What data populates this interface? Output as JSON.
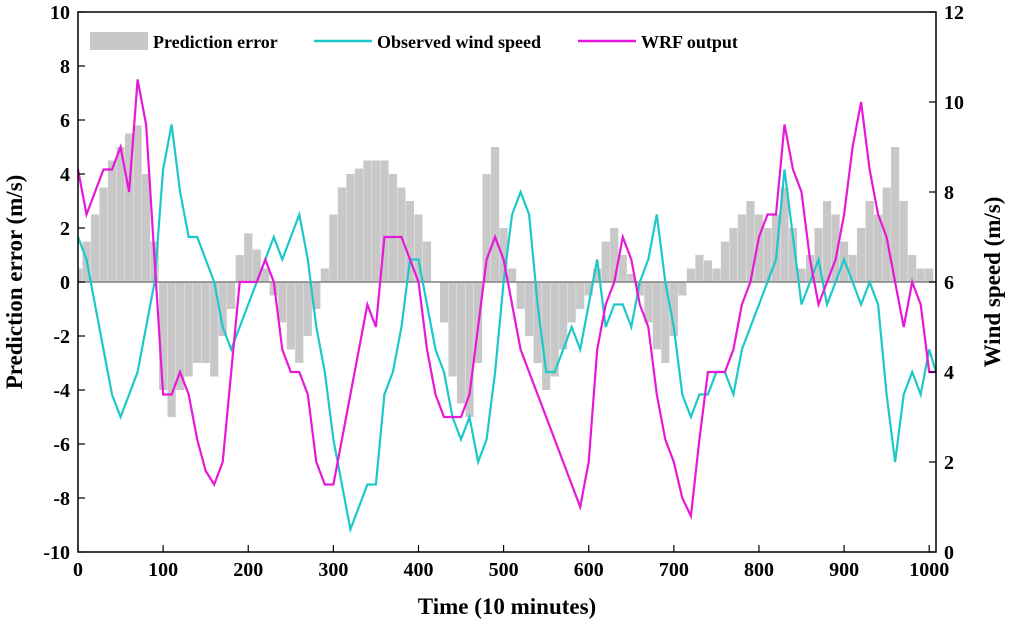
{
  "chart_data": {
    "type": "line",
    "xlabel": "Time (10 minutes)",
    "ylabel_left": "Prediction error (m/s)",
    "ylabel_right": "Wind speed (m/s)",
    "xlim": [
      0,
      1008
    ],
    "ylim_left": [
      -10,
      10
    ],
    "ylim_right": [
      0,
      12
    ],
    "x_ticks": [
      0,
      100,
      200,
      300,
      400,
      500,
      600,
      700,
      800,
      900,
      1000
    ],
    "y_ticks_left": [
      -10,
      -8,
      -6,
      -4,
      -2,
      0,
      2,
      4,
      6,
      8,
      10
    ],
    "y_ticks_right": [
      0,
      2,
      4,
      6,
      8,
      10,
      12
    ],
    "grid": false,
    "legend_position": "top",
    "legend": [
      "Prediction error",
      "Observed wind speed",
      "WRF output"
    ],
    "colors": {
      "prediction_error": "#c8c8c8",
      "observed": "#1ec8c8",
      "wrf": "#e619d8",
      "zero_line": "#808080"
    },
    "series": [
      {
        "name": "Prediction error",
        "axis": "left",
        "render": "bar",
        "x": [
          0,
          10,
          20,
          30,
          40,
          50,
          60,
          70,
          80,
          90,
          100,
          110,
          120,
          130,
          140,
          150,
          160,
          170,
          180,
          190,
          200,
          210,
          220,
          230,
          240,
          250,
          260,
          270,
          280,
          290,
          300,
          310,
          320,
          330,
          340,
          350,
          360,
          370,
          380,
          390,
          400,
          410,
          420,
          430,
          440,
          450,
          460,
          470,
          480,
          490,
          500,
          510,
          520,
          530,
          540,
          550,
          560,
          570,
          580,
          590,
          600,
          610,
          620,
          630,
          640,
          650,
          660,
          670,
          680,
          690,
          700,
          710,
          720,
          730,
          740,
          750,
          760,
          770,
          780,
          790,
          800,
          810,
          820,
          830,
          840,
          850,
          860,
          870,
          880,
          890,
          900,
          910,
          920,
          930,
          940,
          950,
          960,
          970,
          980,
          990,
          1000
        ],
        "values": [
          0.5,
          1.5,
          2.5,
          3.5,
          4.5,
          5.0,
          5.5,
          5.8,
          4.0,
          1.5,
          -4.0,
          -5.0,
          -4.0,
          -3.5,
          -3.0,
          -3.0,
          -3.5,
          -2.0,
          -1.0,
          1.0,
          1.8,
          1.2,
          0.5,
          -0.5,
          -1.5,
          -2.5,
          -3.0,
          -2.0,
          -1.0,
          0.5,
          2.5,
          3.5,
          4.0,
          4.2,
          4.5,
          4.5,
          4.5,
          4.0,
          3.5,
          3.0,
          2.5,
          1.5,
          0.0,
          -1.5,
          -3.5,
          -4.5,
          -5.0,
          -3.0,
          4.0,
          5.0,
          2.0,
          0.5,
          -1.0,
          -2.0,
          -3.0,
          -4.0,
          -3.5,
          -2.5,
          -1.5,
          -1.0,
          -0.5,
          0.5,
          1.5,
          2.0,
          1.0,
          0.3,
          -0.5,
          -1.5,
          -2.5,
          -3.0,
          -2.0,
          -0.5,
          0.5,
          1.0,
          0.8,
          0.5,
          1.5,
          2.0,
          2.5,
          3.0,
          2.5,
          2.0,
          2.5,
          3.5,
          2.0,
          0.5,
          1.0,
          2.0,
          3.0,
          2.5,
          1.5,
          1.0,
          2.0,
          3.0,
          2.5,
          3.5,
          5.0,
          3.0,
          1.0,
          0.5,
          0.5
        ]
      },
      {
        "name": "Observed wind speed",
        "axis": "right",
        "render": "line",
        "x": [
          0,
          10,
          20,
          30,
          40,
          50,
          60,
          70,
          80,
          90,
          100,
          110,
          120,
          130,
          140,
          150,
          160,
          170,
          180,
          190,
          200,
          210,
          220,
          230,
          240,
          250,
          260,
          270,
          280,
          290,
          300,
          310,
          320,
          330,
          340,
          350,
          360,
          370,
          380,
          390,
          400,
          410,
          420,
          430,
          440,
          450,
          460,
          470,
          480,
          490,
          500,
          510,
          520,
          530,
          540,
          550,
          560,
          570,
          580,
          590,
          600,
          610,
          620,
          630,
          640,
          650,
          660,
          670,
          680,
          690,
          700,
          710,
          720,
          730,
          740,
          750,
          760,
          770,
          780,
          790,
          800,
          810,
          820,
          830,
          840,
          850,
          860,
          870,
          880,
          890,
          900,
          910,
          920,
          930,
          940,
          950,
          960,
          970,
          980,
          990,
          1000,
          1008
        ],
        "values": [
          7.0,
          6.5,
          5.5,
          4.5,
          3.5,
          3.0,
          3.5,
          4.0,
          5.0,
          6.0,
          8.5,
          9.5,
          8.0,
          7.0,
          7.0,
          6.5,
          6.0,
          5.0,
          4.5,
          5.0,
          5.5,
          6.0,
          6.5,
          7.0,
          6.5,
          7.0,
          7.5,
          6.5,
          5.0,
          4.0,
          2.5,
          1.5,
          0.5,
          1.0,
          1.5,
          1.5,
          3.5,
          4.0,
          5.0,
          6.5,
          6.5,
          5.5,
          4.5,
          4.0,
          3.0,
          2.5,
          3.0,
          2.0,
          2.5,
          4.0,
          6.0,
          7.5,
          8.0,
          7.5,
          5.5,
          4.0,
          4.0,
          4.5,
          5.0,
          4.5,
          5.5,
          6.5,
          5.0,
          5.5,
          5.5,
          5.0,
          6.0,
          6.5,
          7.5,
          6.0,
          5.0,
          3.5,
          3.0,
          3.5,
          3.5,
          4.0,
          4.0,
          3.5,
          4.5,
          5.0,
          5.5,
          6.0,
          6.5,
          8.5,
          7.0,
          5.5,
          6.0,
          6.5,
          5.5,
          6.0,
          6.5,
          6.0,
          5.5,
          6.0,
          5.5,
          3.5,
          2.0,
          3.5,
          4.0,
          3.5,
          4.5,
          4.0
        ]
      },
      {
        "name": "WRF output",
        "axis": "right",
        "render": "line",
        "x": [
          0,
          10,
          20,
          30,
          40,
          50,
          60,
          70,
          80,
          90,
          100,
          110,
          120,
          130,
          140,
          150,
          160,
          170,
          180,
          190,
          200,
          210,
          220,
          230,
          240,
          250,
          260,
          270,
          280,
          290,
          300,
          310,
          320,
          330,
          340,
          350,
          360,
          370,
          380,
          390,
          400,
          410,
          420,
          430,
          440,
          450,
          460,
          470,
          480,
          490,
          500,
          510,
          520,
          530,
          540,
          550,
          560,
          570,
          580,
          590,
          600,
          610,
          620,
          630,
          640,
          650,
          660,
          670,
          680,
          690,
          700,
          710,
          720,
          730,
          740,
          750,
          760,
          770,
          780,
          790,
          800,
          810,
          820,
          830,
          840,
          850,
          860,
          870,
          880,
          890,
          900,
          910,
          920,
          930,
          940,
          950,
          960,
          970,
          980,
          990,
          1000,
          1008
        ],
        "values": [
          8.5,
          7.5,
          8.0,
          8.5,
          8.5,
          9.0,
          8.0,
          10.5,
          9.5,
          6.5,
          3.5,
          3.5,
          4.0,
          3.5,
          2.5,
          1.8,
          1.5,
          2.0,
          4.0,
          6.0,
          6.0,
          6.0,
          6.5,
          6.0,
          4.5,
          4.0,
          4.0,
          3.5,
          2.0,
          1.5,
          1.5,
          2.5,
          3.5,
          4.5,
          5.5,
          5.0,
          7.0,
          7.0,
          7.0,
          6.5,
          6.0,
          4.5,
          3.5,
          3.0,
          3.0,
          3.0,
          3.5,
          5.0,
          6.5,
          7.0,
          6.5,
          5.5,
          4.5,
          4.0,
          3.5,
          3.0,
          2.5,
          2.0,
          1.5,
          1.0,
          2.0,
          4.5,
          5.5,
          6.0,
          7.0,
          6.5,
          5.5,
          5.0,
          3.5,
          2.5,
          2.0,
          1.2,
          0.8,
          2.5,
          4.0,
          4.0,
          4.0,
          4.5,
          5.5,
          6.0,
          7.0,
          7.5,
          7.5,
          9.5,
          8.5,
          8.0,
          6.5,
          5.5,
          6.0,
          6.5,
          7.5,
          9.0,
          10.0,
          8.5,
          7.5,
          7.0,
          6.0,
          5.0,
          6.0,
          5.5,
          4.0,
          4.0
        ]
      }
    ]
  }
}
